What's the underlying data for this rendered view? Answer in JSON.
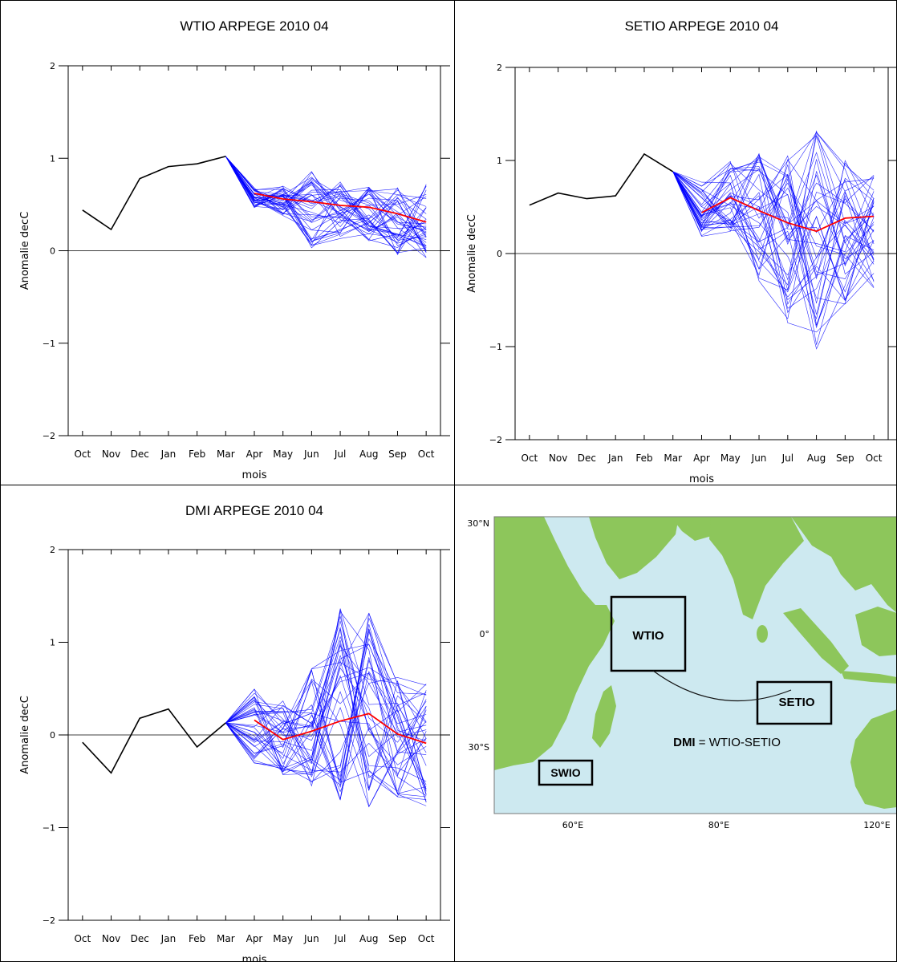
{
  "chart_data": [
    {
      "type": "line",
      "title": "WTIO ARPEGE 2010 04",
      "xlabel": "mois",
      "ylabel": "Anomalie decC",
      "categories": [
        "Oct",
        "Nov",
        "Dec",
        "Jan",
        "Feb",
        "Mar",
        "Apr",
        "May",
        "Jun",
        "Jul",
        "Aug",
        "Sep",
        "Oct"
      ],
      "ylim": [
        -2,
        2
      ],
      "yticks": [
        "2",
        "1",
        "0",
        "−1",
        "−2"
      ],
      "observed": {
        "color": "#000000",
        "values": [
          0.44,
          0.23,
          0.78,
          0.91,
          0.94,
          1.02
        ]
      },
      "ensemble_mean": {
        "color": "#ff0000",
        "values": [
          0.62,
          0.56,
          0.53,
          0.49,
          0.47,
          0.4,
          0.31
        ]
      },
      "ensemble_color": "#0000ff",
      "ensemble_spread": [
        {
          "month": "Apr",
          "min": 0.46,
          "max": 0.68
        },
        {
          "month": "May",
          "min": 0.38,
          "max": 0.72
        },
        {
          "month": "Jun",
          "min": 0.03,
          "max": 0.87
        },
        {
          "month": "Jul",
          "min": 0.12,
          "max": 0.76
        },
        {
          "month": "Aug",
          "min": 0.1,
          "max": 0.7
        },
        {
          "month": "Sep",
          "min": -0.05,
          "max": 0.7
        },
        {
          "month": "Oct",
          "min": -0.1,
          "max": 0.72
        }
      ]
    },
    {
      "type": "line",
      "title": "SETIO ARPEGE 2010 04",
      "xlabel": "mois",
      "ylabel": "Anomalie decC",
      "categories": [
        "Oct",
        "Nov",
        "Dec",
        "Jan",
        "Feb",
        "Mar",
        "Apr",
        "May",
        "Jun",
        "Jul",
        "Aug",
        "Sep",
        "Oct"
      ],
      "ylim": [
        -2,
        2
      ],
      "yticks": [
        "2",
        "1",
        "0",
        "−1",
        "−2"
      ],
      "observed": {
        "color": "#000000",
        "values": [
          0.52,
          0.65,
          0.59,
          0.62,
          1.07,
          0.88
        ]
      },
      "ensemble_mean": {
        "color": "#ff0000",
        "values": [
          0.44,
          0.6,
          0.46,
          0.33,
          0.24,
          0.38,
          0.4
        ]
      },
      "ensemble_color": "#0000ff",
      "ensemble_spread": [
        {
          "month": "Apr",
          "min": 0.18,
          "max": 0.78
        },
        {
          "month": "May",
          "min": 0.22,
          "max": 1.0
        },
        {
          "month": "Jun",
          "min": -0.3,
          "max": 1.2
        },
        {
          "month": "Jul",
          "min": -0.78,
          "max": 1.1
        },
        {
          "month": "Aug",
          "min": -1.05,
          "max": 1.42
        },
        {
          "month": "Sep",
          "min": -0.55,
          "max": 1.0
        },
        {
          "month": "Oct",
          "min": -0.4,
          "max": 0.95
        }
      ]
    },
    {
      "type": "line",
      "title": "DMI ARPEGE 2010 04",
      "xlabel": "mois",
      "ylabel": "Anomalie decC",
      "categories": [
        "Oct",
        "Nov",
        "Dec",
        "Jan",
        "Feb",
        "Mar",
        "Apr",
        "May",
        "Jun",
        "Jul",
        "Aug",
        "Sep",
        "Oct"
      ],
      "ylim": [
        -2,
        2
      ],
      "yticks": [
        "2",
        "1",
        "0",
        "−1",
        "−2"
      ],
      "observed": {
        "color": "#000000",
        "values": [
          -0.08,
          -0.41,
          0.18,
          0.28,
          -0.13,
          0.13
        ]
      },
      "ensemble_mean": {
        "color": "#ff0000",
        "values": [
          0.16,
          -0.05,
          0.04,
          0.15,
          0.23,
          0.01,
          -0.09
        ]
      },
      "ensemble_color": "#0000ff",
      "ensemble_spread": [
        {
          "month": "Apr",
          "min": -0.33,
          "max": 0.5
        },
        {
          "month": "May",
          "min": -0.45,
          "max": 0.38
        },
        {
          "month": "Jun",
          "min": -0.55,
          "max": 0.8
        },
        {
          "month": "Jul",
          "min": -0.75,
          "max": 1.4
        },
        {
          "month": "Aug",
          "min": -0.82,
          "max": 1.36
        },
        {
          "month": "Sep",
          "min": -0.7,
          "max": 0.62
        },
        {
          "month": "Oct",
          "min": -0.8,
          "max": 0.57
        }
      ]
    }
  ],
  "map": {
    "ocean_color": "#cde9f0",
    "land_color": "#8dc65b",
    "lat_labels": [
      "30°N",
      "0°",
      "30°S"
    ],
    "lon_labels": [
      "60°E",
      "80°E",
      "120°E"
    ],
    "regions": [
      "WTIO",
      "SETIO",
      "SWIO"
    ],
    "formula_bold": "DMI",
    "formula_rest": " = WTIO-SETIO"
  }
}
